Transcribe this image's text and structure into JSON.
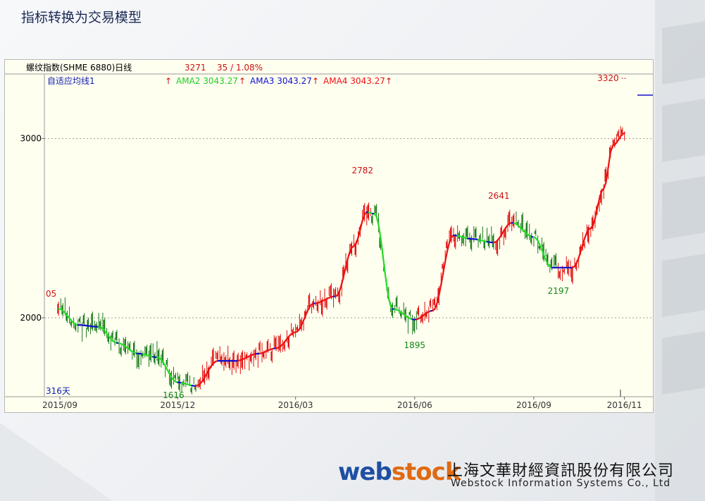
{
  "slide": {
    "title": "指标转换为交易模型"
  },
  "header": {
    "name": "螺纹指数(SHME 6880)日线",
    "price": "3271",
    "change": "35 / 1.08%"
  },
  "indicators": {
    "label": "自适应均线1",
    "ama2": "AMA2 3043.27",
    "ama3": "AMA3 3043.27",
    "ama4": "AMA4 3043.27",
    "arrow": "↑"
  },
  "annotations": {
    "left_edge": "05",
    "days": "316天",
    "marker_3320": "3320",
    "marker_2782": "2782",
    "marker_2641": "2641",
    "marker_1616": "1616",
    "marker_1895": "1895",
    "marker_2197": "2197"
  },
  "logo": {
    "brand_web": "web",
    "brand_stock": "stock",
    "name_cn": "上海文華財經資訊股份有限公司",
    "name_en": "Webstock Information Systems Co., Ltd"
  },
  "colors": {
    "bg": "#fffff0",
    "up": "#e01010",
    "down": "#1a7a1a",
    "ama_green": "#22dd22",
    "ama_blue": "#1010cc",
    "ama_red": "#ee1111",
    "text_red": "#cc1111",
    "text_green": "#118811",
    "text_blue": "#1020b0"
  },
  "chart_data": {
    "type": "line",
    "title": "螺纹指数(SHME 6880)日线",
    "yticks": [
      2000,
      3000
    ],
    "xticks": [
      "2015/09",
      "2015/12",
      "2016/03",
      "2016/06",
      "2016/09",
      "2016/11"
    ],
    "ylim": [
      1560,
      3360
    ],
    "grid": "dotted horizontal at y ticks",
    "series": [
      {
        "name": "AMA",
        "x": [
          "2015/08/31",
          "2015/09/15",
          "2015/10/01",
          "2015/10/15",
          "2015/11/01",
          "2015/11/15",
          "2015/12/01",
          "2015/12/15",
          "2016/01/01",
          "2016/01/15",
          "2016/02/01",
          "2016/02/15",
          "2016/03/01",
          "2016/03/15",
          "2016/04/01",
          "2016/04/15",
          "2016/04/25",
          "2016/05/01",
          "2016/05/15",
          "2016/06/01",
          "2016/06/15",
          "2016/07/01",
          "2016/07/15",
          "2016/08/01",
          "2016/08/15",
          "2016/09/01",
          "2016/09/15",
          "2016/10/01",
          "2016/10/15",
          "2016/10/25",
          "2016/11/01",
          "2016/11/10"
        ],
        "values": [
          2050,
          1960,
          1950,
          1860,
          1800,
          1780,
          1640,
          1620,
          1760,
          1760,
          1800,
          1830,
          1920,
          2080,
          2120,
          2400,
          2590,
          2580,
          2050,
          1990,
          2040,
          2460,
          2440,
          2420,
          2530,
          2450,
          2280,
          2280,
          2500,
          2720,
          2960,
          3030
        ]
      }
    ],
    "annotations": [
      {
        "label": "3320",
        "x": "2016/11/10",
        "y": 3320
      },
      {
        "label": "2782",
        "x": "2016/04/25",
        "y": 2782
      },
      {
        "label": "2641",
        "x": "2016/08/05",
        "y": 2641
      },
      {
        "label": "1616",
        "x": "2015/12/01",
        "y": 1616
      },
      {
        "label": "1895",
        "x": "2016/06/01",
        "y": 1895
      },
      {
        "label": "2197",
        "x": "2016/09/20",
        "y": 2197
      }
    ]
  }
}
